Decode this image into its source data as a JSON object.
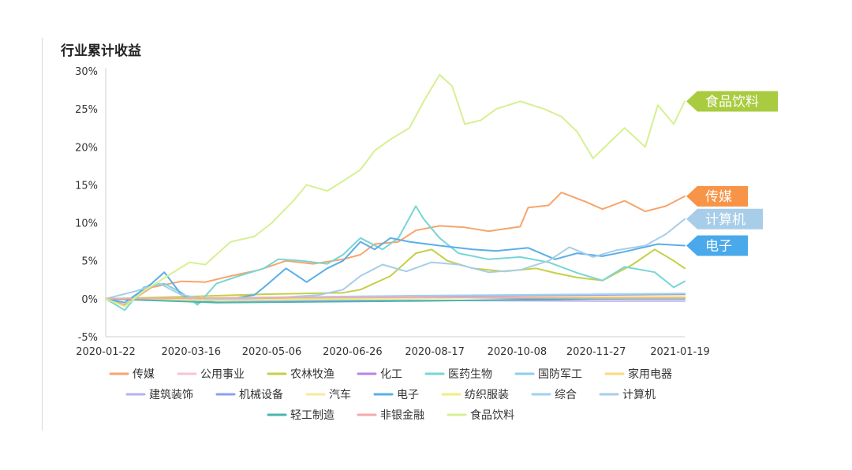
{
  "chart_data": {
    "type": "line",
    "title": "行业累计收益",
    "xlabel": "",
    "ylabel": "",
    "ylim": [
      -5,
      30
    ],
    "y_ticks": [
      -5,
      0,
      5,
      10,
      15,
      20,
      25,
      30
    ],
    "y_tick_suffix": "%",
    "x_start": "2020-01-22",
    "x_end": "2021-01-22",
    "x_ticks": [
      "2020-01-22",
      "2020-03-16",
      "2020-05-06",
      "2020-06-26",
      "2020-08-17",
      "2020-10-08",
      "2020-11-27",
      "2021-01-19"
    ],
    "grid": "y-axis line only",
    "legend_position": "bottom",
    "legend_rows": [
      [
        "传媒",
        "公用事业",
        "农林牧渔",
        "化工",
        "医药生物",
        "国防军工",
        "家用电器"
      ],
      [
        "建筑装饰",
        "机械设备",
        "汽车",
        "电子",
        "纺织服装",
        "综合",
        "计算机"
      ],
      [
        "轻工制造",
        "非银金融",
        "食品饮料"
      ]
    ],
    "series": [
      {
        "name": "传媒",
        "color": "#f7a56b",
        "tag": true,
        "points": [
          [
            "2020-01-22",
            0
          ],
          [
            "2020-02-03",
            -0.8
          ],
          [
            "2020-02-20",
            1.5
          ],
          [
            "2020-03-10",
            2.3
          ],
          [
            "2020-03-25",
            2.2
          ],
          [
            "2020-04-10",
            3
          ],
          [
            "2020-04-28",
            3.8
          ],
          [
            "2020-05-15",
            5
          ],
          [
            "2020-06-01",
            4.6
          ],
          [
            "2020-06-20",
            5.2
          ],
          [
            "2020-07-01",
            5.8
          ],
          [
            "2020-07-10",
            7.2
          ],
          [
            "2020-07-25",
            7.5
          ],
          [
            "2020-08-05",
            9
          ],
          [
            "2020-08-20",
            9.6
          ],
          [
            "2020-09-05",
            9.4
          ],
          [
            "2020-09-20",
            8.9
          ],
          [
            "2020-10-10",
            9.5
          ],
          [
            "2020-10-15",
            12
          ],
          [
            "2020-10-28",
            12.3
          ],
          [
            "2020-11-05",
            14
          ],
          [
            "2020-11-20",
            12.8
          ],
          [
            "2020-12-01",
            11.8
          ],
          [
            "2020-12-15",
            12.9
          ],
          [
            "2020-12-28",
            11.5
          ],
          [
            "2021-01-10",
            12.2
          ],
          [
            "2021-01-22",
            13.5
          ]
        ]
      },
      {
        "name": "公用事业",
        "color": "#f9c5d0",
        "points": [
          [
            "2020-01-22",
            0
          ],
          [
            "2020-03-01",
            -0.2
          ],
          [
            "2020-06-01",
            0.2
          ],
          [
            "2020-09-01",
            0.4
          ],
          [
            "2020-12-01",
            0.5
          ],
          [
            "2021-01-22",
            0.6
          ]
        ]
      },
      {
        "name": "农林牧渔",
        "color": "#c6cf45",
        "points": [
          [
            "2020-01-22",
            0
          ],
          [
            "2020-03-01",
            0.2
          ],
          [
            "2020-05-01",
            0.6
          ],
          [
            "2020-06-20",
            0.8
          ],
          [
            "2020-07-01",
            1.2
          ],
          [
            "2020-07-20",
            3
          ],
          [
            "2020-08-05",
            6
          ],
          [
            "2020-08-15",
            6.5
          ],
          [
            "2020-08-25",
            5
          ],
          [
            "2020-09-10",
            4
          ],
          [
            "2020-09-30",
            3.6
          ],
          [
            "2020-10-20",
            4
          ],
          [
            "2020-11-01",
            3.4
          ],
          [
            "2020-11-15",
            2.8
          ],
          [
            "2020-12-01",
            2.4
          ],
          [
            "2020-12-20",
            4.5
          ],
          [
            "2021-01-03",
            6.5
          ],
          [
            "2021-01-15",
            5
          ],
          [
            "2021-01-22",
            4
          ]
        ]
      },
      {
        "name": "化工",
        "color": "#b983e6",
        "points": [
          [
            "2020-01-22",
            0
          ],
          [
            "2020-04-01",
            -0.1
          ],
          [
            "2020-08-01",
            0.2
          ],
          [
            "2020-12-01",
            0
          ],
          [
            "2021-01-22",
            0.1
          ]
        ]
      },
      {
        "name": "医药生物",
        "color": "#79d5d5",
        "points": [
          [
            "2020-01-22",
            0
          ],
          [
            "2020-02-03",
            -1.5
          ],
          [
            "2020-02-15",
            1.5
          ],
          [
            "2020-02-28",
            2
          ],
          [
            "2020-03-10",
            0.8
          ],
          [
            "2020-03-20",
            -0.8
          ],
          [
            "2020-04-01",
            2
          ],
          [
            "2020-04-15",
            3
          ],
          [
            "2020-05-01",
            4
          ],
          [
            "2020-05-10",
            5.2
          ],
          [
            "2020-05-25",
            5
          ],
          [
            "2020-06-10",
            4.6
          ],
          [
            "2020-06-20",
            5.8
          ],
          [
            "2020-07-01",
            8
          ],
          [
            "2020-07-15",
            6.5
          ],
          [
            "2020-07-25",
            8
          ],
          [
            "2020-08-05",
            12.2
          ],
          [
            "2020-08-10",
            10.5
          ],
          [
            "2020-08-20",
            8
          ],
          [
            "2020-09-01",
            6
          ],
          [
            "2020-09-20",
            5.2
          ],
          [
            "2020-10-10",
            5.5
          ],
          [
            "2020-10-28",
            4.8
          ],
          [
            "2020-11-15",
            3.4
          ],
          [
            "2020-12-01",
            2.4
          ],
          [
            "2020-12-15",
            4.2
          ],
          [
            "2021-01-03",
            3.5
          ],
          [
            "2021-01-15",
            1.5
          ],
          [
            "2021-01-22",
            2.3
          ]
        ]
      },
      {
        "name": "国防军工",
        "color": "#8ecdf0",
        "points": [
          [
            "2020-01-22",
            0
          ],
          [
            "2020-05-01",
            0.1
          ],
          [
            "2020-08-01",
            0.3
          ],
          [
            "2020-11-01",
            0.4
          ],
          [
            "2021-01-22",
            0.5
          ]
        ]
      },
      {
        "name": "家用电器",
        "color": "#fcd97a",
        "points": [
          [
            "2020-01-22",
            0
          ],
          [
            "2020-04-01",
            -0.3
          ],
          [
            "2020-07-01",
            0
          ],
          [
            "2020-10-01",
            0.2
          ],
          [
            "2021-01-22",
            0.3
          ]
        ]
      },
      {
        "name": "建筑装饰",
        "color": "#b3b3f0",
        "points": [
          [
            "2020-01-22",
            0
          ],
          [
            "2020-04-01",
            -0.3
          ],
          [
            "2020-08-01",
            -0.2
          ],
          [
            "2020-12-01",
            -0.3
          ],
          [
            "2021-01-22",
            -0.3
          ]
        ]
      },
      {
        "name": "机械设备",
        "color": "#8f9ff0",
        "points": [
          [
            "2020-01-22",
            0
          ],
          [
            "2020-04-01",
            0
          ],
          [
            "2020-08-01",
            0.3
          ],
          [
            "2020-12-01",
            0.5
          ],
          [
            "2021-01-22",
            0.6
          ]
        ]
      },
      {
        "name": "汽车",
        "color": "#fbe7a0",
        "points": [
          [
            "2020-01-22",
            0
          ],
          [
            "2020-04-01",
            -0.2
          ],
          [
            "2020-08-01",
            0.1
          ],
          [
            "2020-12-01",
            0.3
          ],
          [
            "2021-01-22",
            0.4
          ]
        ]
      },
      {
        "name": "电子",
        "color": "#5aaee8",
        "tag": true,
        "points": [
          [
            "2020-01-22",
            0
          ],
          [
            "2020-02-03",
            -0.5
          ],
          [
            "2020-02-20",
            2
          ],
          [
            "2020-02-28",
            3.5
          ],
          [
            "2020-03-10",
            0.5
          ],
          [
            "2020-03-20",
            -0.5
          ],
          [
            "2020-04-10",
            0
          ],
          [
            "2020-04-25",
            0.5
          ],
          [
            "2020-05-01",
            1.5
          ],
          [
            "2020-05-15",
            4
          ],
          [
            "2020-05-28",
            2.2
          ],
          [
            "2020-06-10",
            4
          ],
          [
            "2020-06-20",
            5
          ],
          [
            "2020-07-01",
            7.5
          ],
          [
            "2020-07-10",
            6.5
          ],
          [
            "2020-07-20",
            8
          ],
          [
            "2020-08-01",
            7.5
          ],
          [
            "2020-08-20",
            7
          ],
          [
            "2020-09-10",
            6.5
          ],
          [
            "2020-09-25",
            6.3
          ],
          [
            "2020-10-15",
            6.7
          ],
          [
            "2020-11-01",
            5.2
          ],
          [
            "2020-11-15",
            6
          ],
          [
            "2020-12-01",
            5.6
          ],
          [
            "2020-12-15",
            6.2
          ],
          [
            "2021-01-05",
            7.2
          ],
          [
            "2021-01-22",
            7
          ]
        ]
      },
      {
        "name": "纺织服装",
        "color": "#eef07e",
        "points": [
          [
            "2020-01-22",
            0
          ],
          [
            "2020-04-01",
            -0.2
          ],
          [
            "2020-08-01",
            0.1
          ],
          [
            "2020-12-01",
            0.2
          ],
          [
            "2021-01-22",
            0.2
          ]
        ]
      },
      {
        "name": "综合",
        "color": "#9fd1f3",
        "points": [
          [
            "2020-01-22",
            0
          ],
          [
            "2020-04-01",
            0.1
          ],
          [
            "2020-08-01",
            0.4
          ],
          [
            "2020-12-01",
            0.6
          ],
          [
            "2021-01-22",
            0.7
          ]
        ]
      },
      {
        "name": "计算机",
        "color": "#a7cde8",
        "tag": true,
        "points": [
          [
            "2020-01-22",
            0
          ],
          [
            "2020-02-10",
            1
          ],
          [
            "2020-02-25",
            2
          ],
          [
            "2020-03-10",
            0.5
          ],
          [
            "2020-03-25",
            0
          ],
          [
            "2020-04-20",
            0
          ],
          [
            "2020-05-15",
            0.2
          ],
          [
            "2020-06-05",
            0.5
          ],
          [
            "2020-06-20",
            1.2
          ],
          [
            "2020-07-01",
            3
          ],
          [
            "2020-07-15",
            4.5
          ],
          [
            "2020-07-30",
            3.6
          ],
          [
            "2020-08-15",
            4.8
          ],
          [
            "2020-09-01",
            4.5
          ],
          [
            "2020-09-20",
            3.5
          ],
          [
            "2020-10-10",
            3.8
          ],
          [
            "2020-10-28",
            5
          ],
          [
            "2020-11-10",
            6.8
          ],
          [
            "2020-11-25",
            5.5
          ],
          [
            "2020-12-10",
            6.4
          ],
          [
            "2020-12-28",
            7
          ],
          [
            "2021-01-10",
            8.5
          ],
          [
            "2021-01-22",
            10.5
          ]
        ]
      },
      {
        "name": "轻工制造",
        "color": "#4ab5ad",
        "points": [
          [
            "2020-01-22",
            0
          ],
          [
            "2020-04-01",
            -0.5
          ],
          [
            "2020-08-01",
            -0.3
          ],
          [
            "2020-12-01",
            0
          ],
          [
            "2021-01-22",
            0
          ]
        ]
      },
      {
        "name": "非银金融",
        "color": "#f6aaaa",
        "points": [
          [
            "2020-01-22",
            0
          ],
          [
            "2020-04-01",
            0.1
          ],
          [
            "2020-08-01",
            0.2
          ],
          [
            "2020-12-01",
            0.1
          ],
          [
            "2021-01-22",
            0.1
          ]
        ]
      },
      {
        "name": "食品饮料",
        "color": "#d6f092",
        "tag": true,
        "points": [
          [
            "2020-01-22",
            0
          ],
          [
            "2020-02-03",
            -1
          ],
          [
            "2020-02-15",
            1
          ],
          [
            "2020-03-01",
            3
          ],
          [
            "2020-03-15",
            4.8
          ],
          [
            "2020-03-25",
            4.5
          ],
          [
            "2020-04-10",
            7.5
          ],
          [
            "2020-04-25",
            8.2
          ],
          [
            "2020-05-06",
            10
          ],
          [
            "2020-05-20",
            13
          ],
          [
            "2020-05-28",
            15
          ],
          [
            "2020-06-10",
            14.2
          ],
          [
            "2020-06-20",
            15.5
          ],
          [
            "2020-07-01",
            17
          ],
          [
            "2020-07-10",
            19.5
          ],
          [
            "2020-07-20",
            21
          ],
          [
            "2020-08-01",
            22.5
          ],
          [
            "2020-08-10",
            26
          ],
          [
            "2020-08-20",
            29.5
          ],
          [
            "2020-08-28",
            28
          ],
          [
            "2020-09-05",
            23
          ],
          [
            "2020-09-15",
            23.5
          ],
          [
            "2020-09-25",
            25
          ],
          [
            "2020-10-10",
            26
          ],
          [
            "2020-10-25",
            25
          ],
          [
            "2020-11-05",
            24
          ],
          [
            "2020-11-15",
            22
          ],
          [
            "2020-11-25",
            18.5
          ],
          [
            "2020-12-05",
            20.5
          ],
          [
            "2020-12-15",
            22.5
          ],
          [
            "2020-12-28",
            20
          ],
          [
            "2021-01-05",
            25.5
          ],
          [
            "2021-01-15",
            23
          ],
          [
            "2021-01-22",
            26
          ]
        ]
      }
    ]
  }
}
